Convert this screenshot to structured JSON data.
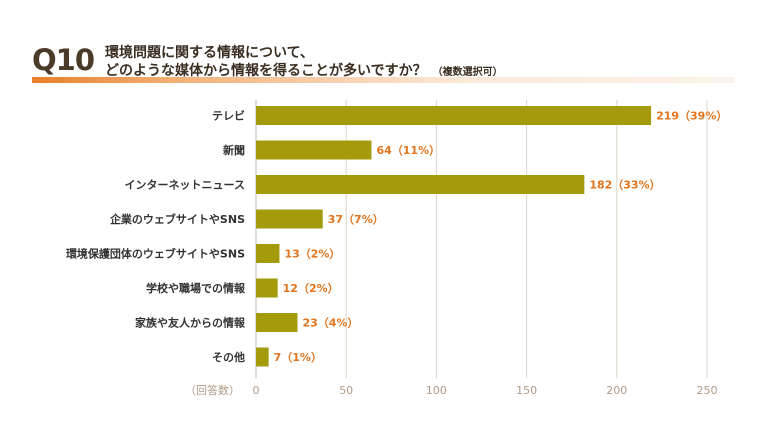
{
  "question": {
    "number": "Q10",
    "line1": "環境問題に関する情報について、",
    "line2": "どのような媒体から情報を得ることが多いですか？",
    "note": "（複数選択可）"
  },
  "colors": {
    "bar": "#a39a0c",
    "accent": "#e2741d",
    "grid": "#dcd3c9",
    "axis": "#c9b9a8"
  },
  "chart_data": {
    "type": "bar",
    "orientation": "horizontal",
    "xlim": [
      0,
      250
    ],
    "ticks": [
      0,
      50,
      100,
      150,
      200,
      250
    ],
    "xunit_label": "（回答数）",
    "categories": [
      "テレビ",
      "新聞",
      "インターネットニュース",
      "企業のウェブサイトやSNS",
      "環境保護団体のウェブサイトやSNS",
      "学校や職場での情報",
      "家族や友人からの情報",
      "その他"
    ],
    "values": [
      219,
      64,
      182,
      37,
      13,
      12,
      23,
      7
    ],
    "data_labels": [
      "219（39%）",
      "64（11%）",
      "182（33%）",
      "37（7%）",
      "13（2%）",
      "12（2%）",
      "23（4%）",
      "7（1%）"
    ]
  }
}
